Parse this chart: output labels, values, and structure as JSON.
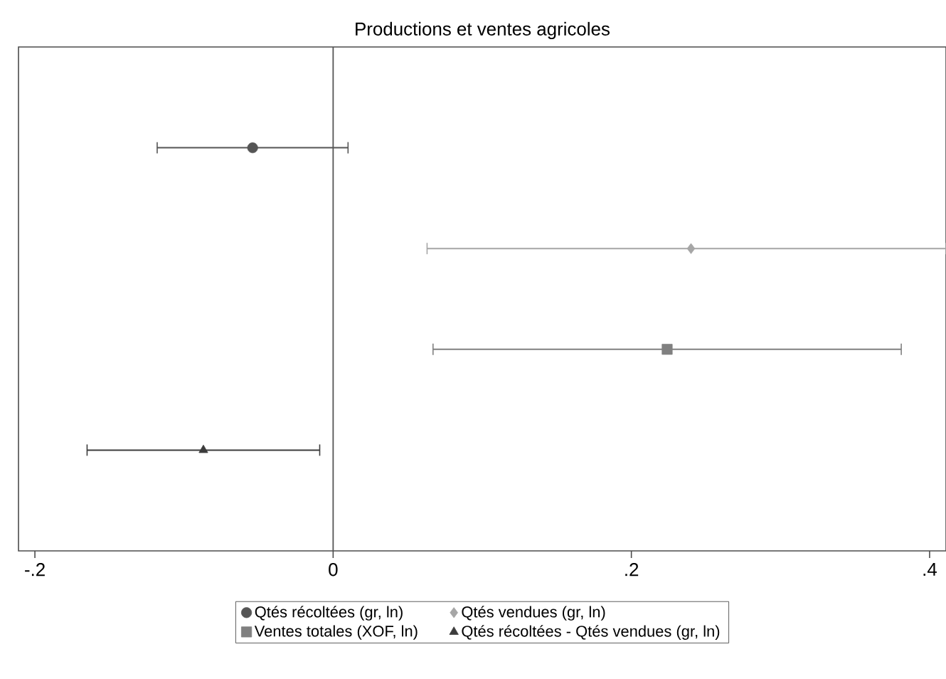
{
  "chart_data": {
    "type": "scatter",
    "title": "Productions et ventes agricoles",
    "orientation": "horizontal",
    "categories": [
      null,
      null,
      null,
      null
    ],
    "series": [
      {
        "name": "Qtés récoltées (gr, ln)",
        "color": "#555555",
        "marker": "circle",
        "values": [
          -0.054,
          null,
          null,
          null
        ],
        "errors": [
          [
            -0.118,
            0.01
          ],
          null,
          null,
          null
        ]
      },
      {
        "name": "Qtés vendues (gr, ln)",
        "color": "#a6a6a6",
        "marker": "diamond",
        "values": [
          null,
          0.24,
          null,
          null
        ],
        "errors": [
          null,
          [
            0.063,
            0.411
          ],
          null,
          null
        ]
      },
      {
        "name": "Ventes totales (XOF, ln)",
        "color": "#808080",
        "marker": "square",
        "values": [
          null,
          null,
          0.224,
          null
        ],
        "errors": [
          null,
          null,
          [
            0.067,
            0.381
          ],
          null
        ]
      },
      {
        "name": "Qtés récoltées - Qtés vendues (gr, ln)",
        "color": "#3c3c3c",
        "marker": "triangle",
        "values": [
          null,
          null,
          null,
          -0.087
        ],
        "errors": [
          null,
          null,
          null,
          [
            -0.165,
            -0.009
          ]
        ]
      }
    ],
    "xlim": [
      -0.211,
      0.411
    ],
    "xticks": [
      {
        "value": -0.2,
        "label": "-.2"
      },
      0,
      {
        "value": 0.2,
        "label": ".2"
      },
      {
        "value": 0.4,
        "label": ".4"
      }
    ],
    "ref_lines": [
      {
        "axis": "x",
        "value": 0,
        "color": "#555555"
      }
    ],
    "grid": false,
    "legend": "bottom"
  }
}
